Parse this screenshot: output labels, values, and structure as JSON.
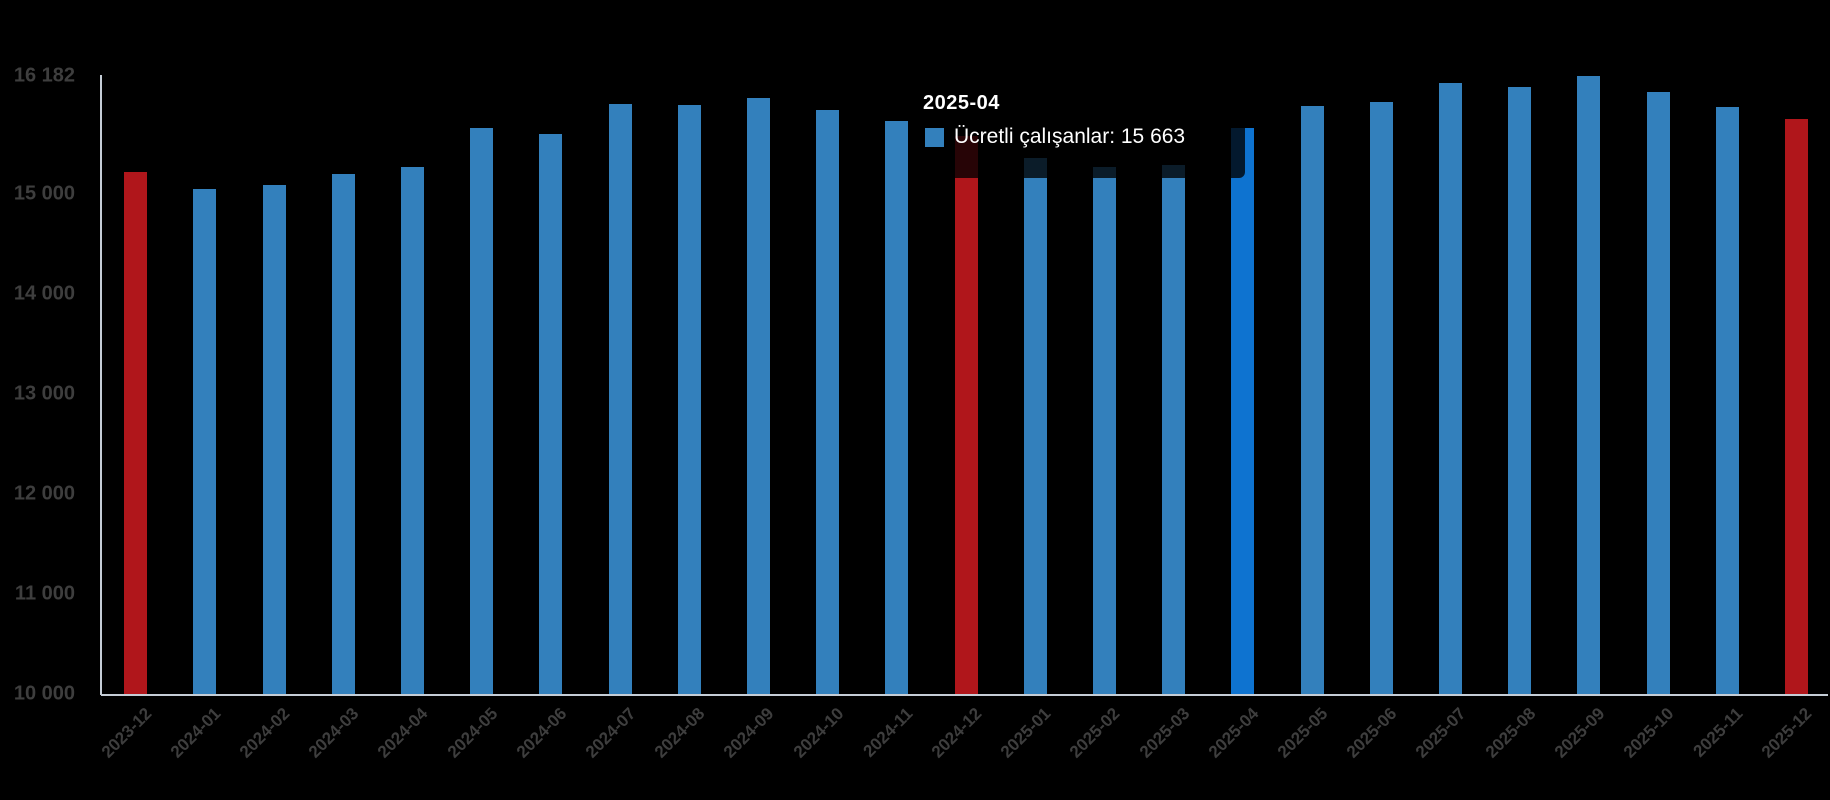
{
  "chart_data": {
    "type": "bar",
    "title": "",
    "series_name": "Ücretli çalışanlar",
    "categories": [
      "2023-12",
      "2024-01",
      "2024-02",
      "2024-03",
      "2024-04",
      "2024-05",
      "2024-06",
      "2024-07",
      "2024-08",
      "2024-09",
      "2024-10",
      "2024-11",
      "2024-12",
      "2025-01",
      "2025-02",
      "2025-03",
      "2025-04",
      "2025-05",
      "2025-06",
      "2025-07",
      "2025-08",
      "2025-09",
      "2025-10",
      "2025-11",
      "2025-12"
    ],
    "values": [
      15225,
      15055,
      15095,
      15205,
      15275,
      15665,
      15600,
      15905,
      15890,
      15965,
      15845,
      15730,
      15585,
      15360,
      15275,
      15290,
      15663,
      15880,
      15920,
      16110,
      16070,
      16182,
      16020,
      15870,
      15750
    ],
    "red_months": [
      "2023-12",
      "2024-12",
      "2025-12"
    ],
    "hovered_month": "2025-04",
    "ylim": [
      10000,
      16182
    ],
    "yticks": [
      {
        "label": "16 182",
        "value": 16182
      },
      {
        "label": "15 000",
        "value": 15000
      },
      {
        "label": "14 000",
        "value": 14000
      },
      {
        "label": "13 000",
        "value": 13000
      },
      {
        "label": "12 000",
        "value": 12000
      },
      {
        "label": "11 000",
        "value": 11000
      },
      {
        "label": "10 000",
        "value": 10000
      }
    ],
    "grid": "off",
    "legend": "none",
    "colors": {
      "bar_blue": "#3380bc",
      "bar_red": "#b0161b",
      "bar_hover_blue": "#0e73d0",
      "axis_line": "#c5cdd6",
      "axis_label": "#3e3e3e",
      "tooltip_text": "#ffffff"
    }
  },
  "tooltip": {
    "title": "2025-04",
    "line": "Ücretli çalışanlar: 15 663",
    "marker_color": "#3380bc"
  }
}
